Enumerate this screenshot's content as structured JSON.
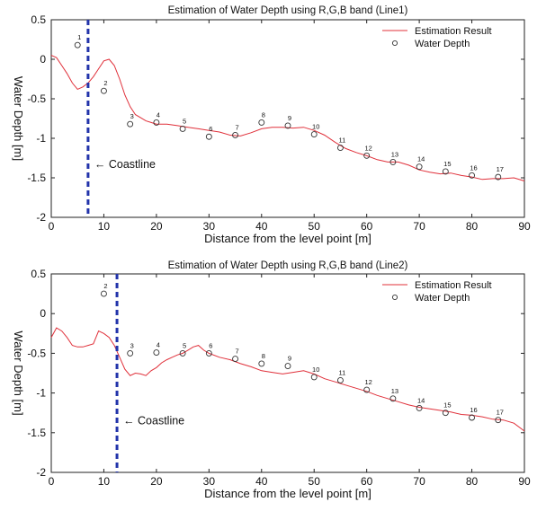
{
  "chart_data": [
    {
      "type": "line",
      "title": "Estimation of Water Depth using R,G,B band (Line1)",
      "xlabel": "Distance from the level point [m]",
      "ylabel": "Water Depth [m]",
      "xlim": [
        0,
        90
      ],
      "ylim": [
        -2,
        0.5
      ],
      "xticks": [
        "0",
        "10",
        "20",
        "30",
        "40",
        "50",
        "60",
        "70",
        "80",
        "90"
      ],
      "yticks": [
        "0.5",
        "0",
        "-0.5",
        "-1",
        "-1.5",
        "-2"
      ],
      "legend": {
        "position": "top-right",
        "entries": [
          "Estimation Result",
          "Water Depth"
        ]
      },
      "grid": false,
      "estimation_color": "#e0303a",
      "coastline_color": "#2233aa",
      "coastline": {
        "x": 7,
        "label": "← Coastline",
        "label_y": -1.33
      },
      "estimation": {
        "x": [
          0,
          1,
          2,
          3,
          4,
          5,
          6,
          7,
          8,
          9,
          10,
          11,
          12,
          13,
          14,
          15,
          16,
          17,
          18,
          19,
          20,
          22,
          24,
          26,
          28,
          30,
          32,
          34,
          36,
          38,
          40,
          42,
          44,
          46,
          48,
          50,
          52,
          54,
          56,
          58,
          60,
          62,
          64,
          66,
          68,
          70,
          72,
          74,
          76,
          78,
          80,
          82,
          84,
          86,
          88,
          90
        ],
        "y": [
          0.05,
          0.02,
          -0.08,
          -0.18,
          -0.3,
          -0.38,
          -0.35,
          -0.3,
          -0.22,
          -0.12,
          -0.02,
          0.0,
          -0.08,
          -0.25,
          -0.45,
          -0.6,
          -0.7,
          -0.74,
          -0.78,
          -0.8,
          -0.82,
          -0.82,
          -0.84,
          -0.86,
          -0.88,
          -0.9,
          -0.92,
          -0.96,
          -0.97,
          -0.93,
          -0.88,
          -0.86,
          -0.86,
          -0.87,
          -0.86,
          -0.9,
          -0.96,
          -1.05,
          -1.13,
          -1.18,
          -1.22,
          -1.27,
          -1.3,
          -1.3,
          -1.34,
          -1.4,
          -1.43,
          -1.45,
          -1.44,
          -1.47,
          -1.49,
          -1.52,
          -1.51,
          -1.51,
          -1.5,
          -1.54
        ]
      },
      "water_depth": {
        "x": [
          5,
          10,
          15,
          20,
          25,
          30,
          35,
          40,
          45,
          50,
          55,
          60,
          65,
          70,
          75,
          80,
          85
        ],
        "y": [
          0.18,
          -0.4,
          -0.82,
          -0.8,
          -0.88,
          -0.98,
          -0.96,
          -0.8,
          -0.84,
          -0.95,
          -1.12,
          -1.22,
          -1.3,
          -1.36,
          -1.42,
          -1.47,
          -1.49
        ],
        "labels": [
          "1",
          "2",
          "3",
          "4",
          "5",
          "6",
          "7",
          "8",
          "9",
          "10",
          "11",
          "12",
          "13",
          "14",
          "15",
          "16",
          "17"
        ]
      }
    },
    {
      "type": "line",
      "title": "Estimation of Water Depth using R,G,B band (Line2)",
      "xlabel": "Distance from the level point [m]",
      "ylabel": "Water Depth [m]",
      "xlim": [
        0,
        90
      ],
      "ylim": [
        -2,
        0.5
      ],
      "xticks": [
        "0",
        "10",
        "20",
        "30",
        "40",
        "50",
        "60",
        "70",
        "80",
        "90"
      ],
      "yticks": [
        "0.5",
        "0",
        "-0.5",
        "-1",
        "-1.5",
        "-2"
      ],
      "legend": {
        "position": "top-right",
        "entries": [
          "Estimation Result",
          "Water Depth"
        ]
      },
      "grid": false,
      "estimation_color": "#e0303a",
      "coastline_color": "#2233aa",
      "coastline": {
        "x": 12.5,
        "label": "← Coastline",
        "label_y": -1.35
      },
      "estimation": {
        "x": [
          0,
          1,
          2,
          3,
          4,
          5,
          6,
          7,
          8,
          9,
          10,
          11,
          12,
          13,
          14,
          15,
          16,
          17,
          18,
          19,
          20,
          21,
          22,
          23,
          24,
          25,
          26,
          27,
          28,
          29,
          30,
          32,
          34,
          36,
          38,
          40,
          42,
          44,
          46,
          48,
          50,
          52,
          54,
          56,
          58,
          60,
          62,
          64,
          66,
          68,
          70,
          72,
          74,
          76,
          78,
          80,
          82,
          84,
          86,
          88,
          90
        ],
        "y": [
          -0.3,
          -0.18,
          -0.22,
          -0.3,
          -0.4,
          -0.42,
          -0.42,
          -0.4,
          -0.38,
          -0.22,
          -0.25,
          -0.3,
          -0.4,
          -0.55,
          -0.7,
          -0.78,
          -0.75,
          -0.76,
          -0.78,
          -0.72,
          -0.68,
          -0.62,
          -0.58,
          -0.55,
          -0.52,
          -0.5,
          -0.46,
          -0.42,
          -0.4,
          -0.46,
          -0.5,
          -0.55,
          -0.58,
          -0.63,
          -0.67,
          -0.72,
          -0.74,
          -0.76,
          -0.74,
          -0.72,
          -0.76,
          -0.82,
          -0.86,
          -0.9,
          -0.94,
          -0.98,
          -1.03,
          -1.07,
          -1.11,
          -1.15,
          -1.18,
          -1.2,
          -1.22,
          -1.24,
          -1.27,
          -1.28,
          -1.3,
          -1.33,
          -1.34,
          -1.38,
          -1.48
        ]
      },
      "water_depth": {
        "x": [
          10,
          15,
          20,
          25,
          30,
          35,
          40,
          45,
          50,
          55,
          60,
          65,
          70,
          75,
          80,
          85
        ],
        "y": [
          0.25,
          -0.5,
          -0.49,
          -0.5,
          -0.5,
          -0.57,
          -0.63,
          -0.66,
          -0.8,
          -0.84,
          -0.96,
          -1.07,
          -1.19,
          -1.25,
          -1.31,
          -1.34
        ],
        "labels": [
          "2",
          "3",
          "4",
          "5",
          "6",
          "7",
          "8",
          "9",
          "10",
          "11",
          "12",
          "13",
          "14",
          "15",
          "16",
          "17"
        ]
      }
    }
  ]
}
